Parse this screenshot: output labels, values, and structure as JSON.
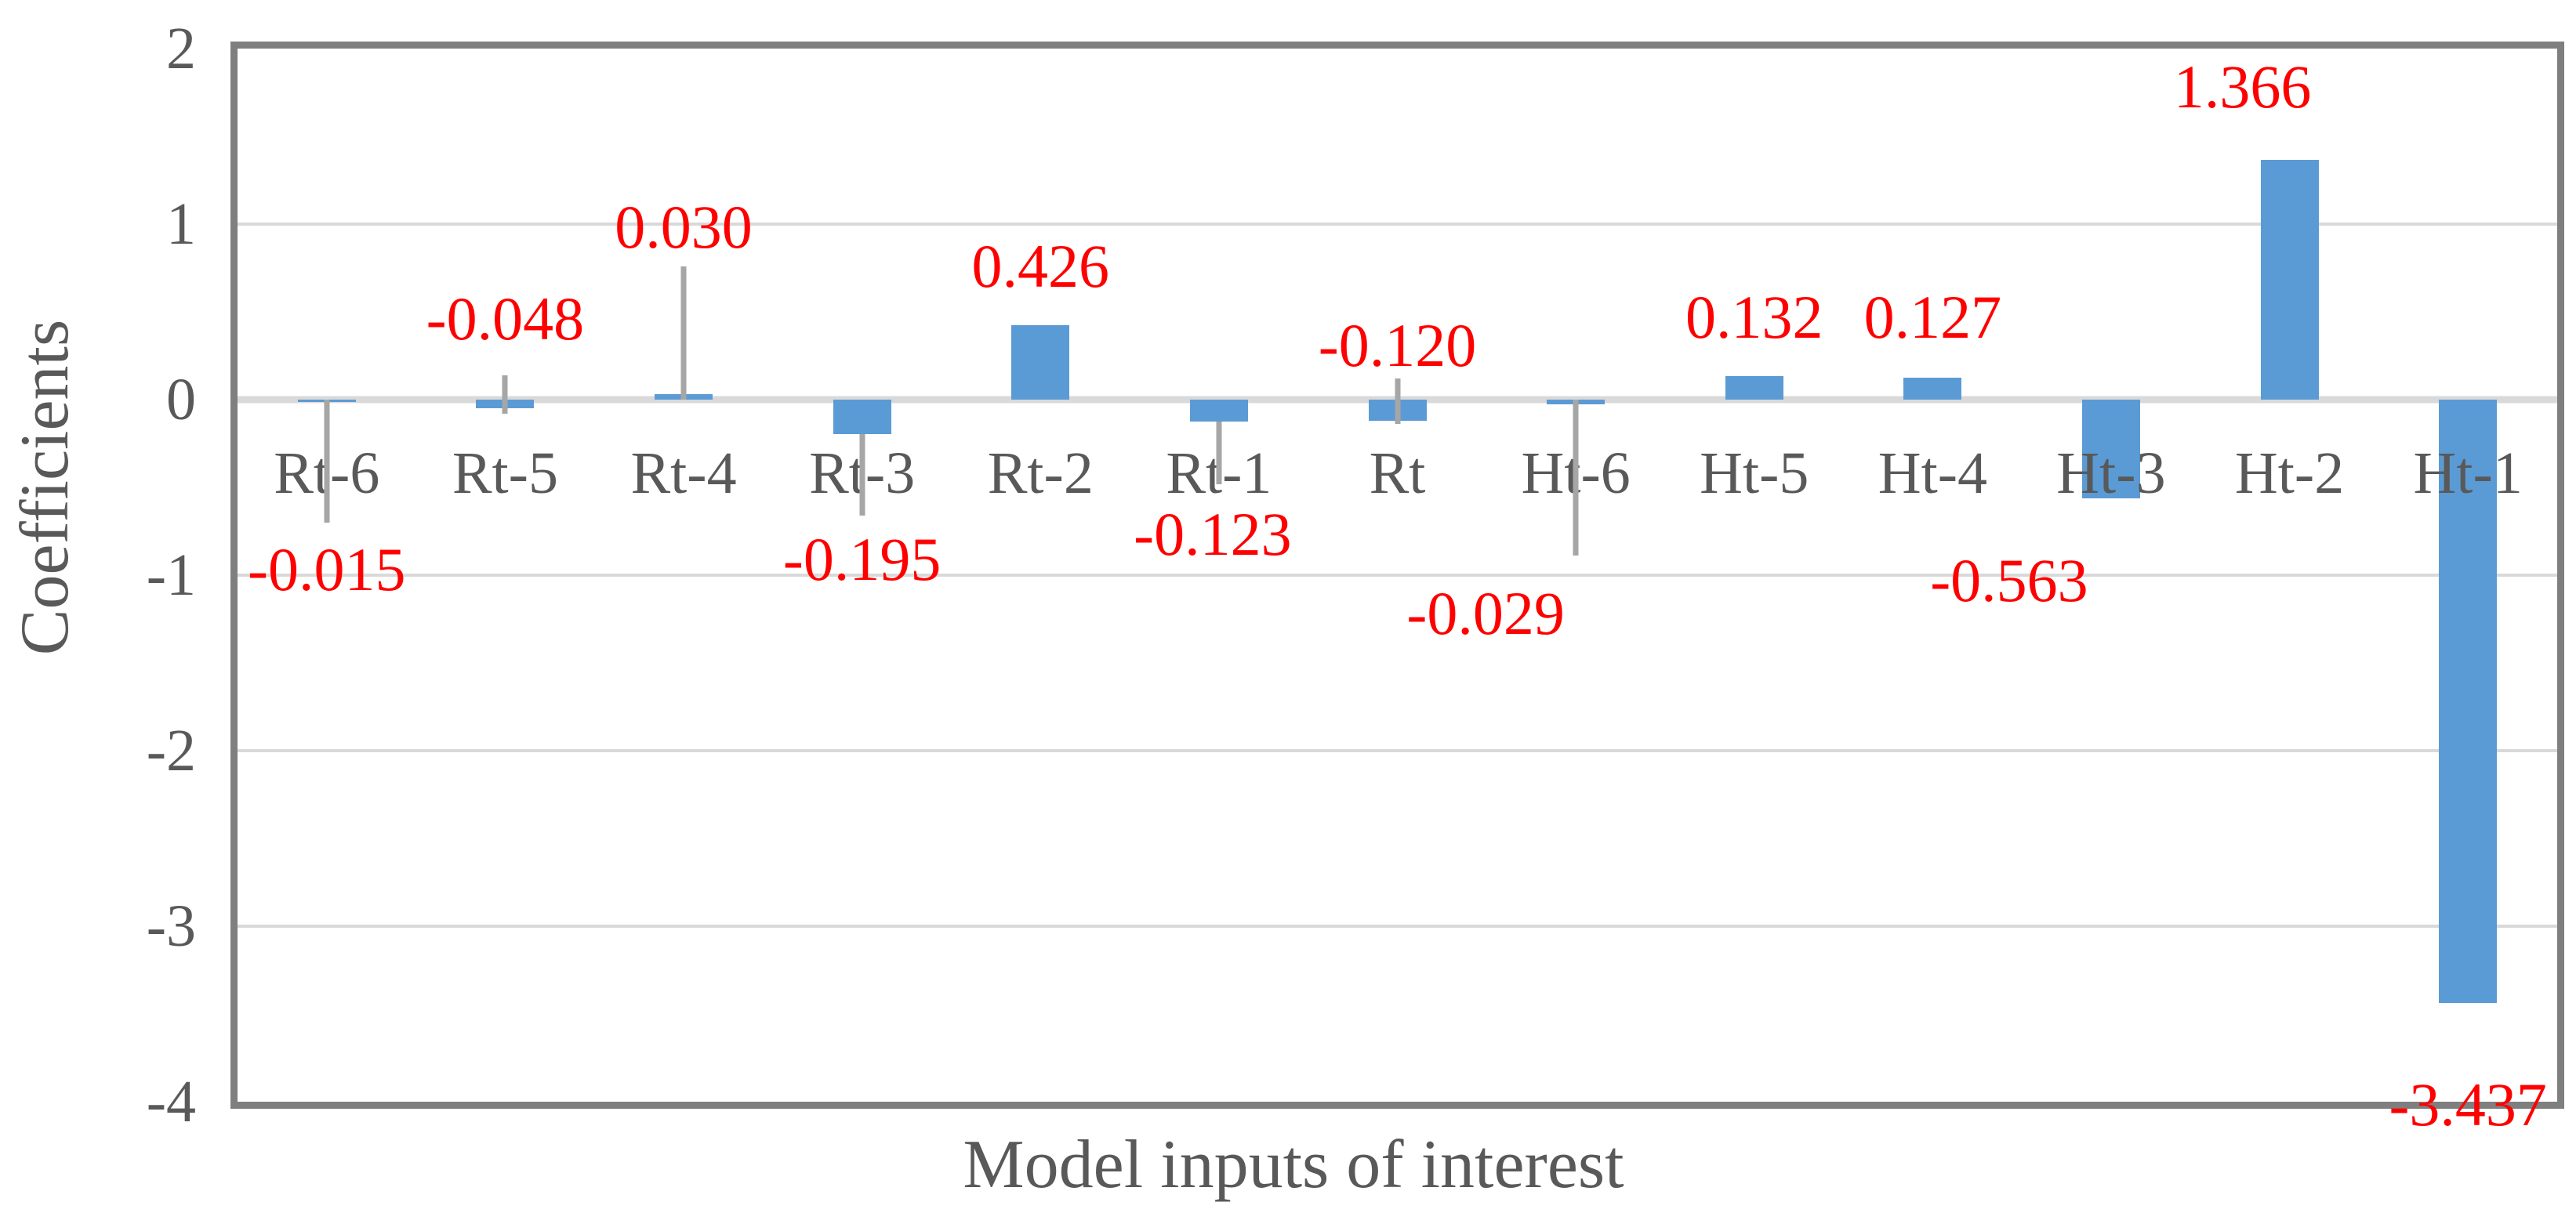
{
  "chart_data": {
    "type": "bar",
    "title": "",
    "xlabel": "Model inputs of interest",
    "ylabel": "Coefficients",
    "ylim": [
      -4,
      2
    ],
    "grid": true,
    "legend": false,
    "background": "#FFFFFF",
    "colors": {
      "bar": "#5B9BD5",
      "error_bar": "#A6A6A6",
      "gridline": "#D9D9D9",
      "plot_border": "#7F7F7F",
      "axis_text": "#595959",
      "data_label": "#FF0000"
    },
    "ytick_labels": [
      "2",
      "1",
      "0",
      "-1",
      "-2",
      "-3",
      "-4"
    ],
    "ytick_values": [
      2,
      1,
      0,
      -1,
      -2,
      -3,
      -4
    ],
    "categories": [
      "Rt-6",
      "Rt-5",
      "Rt-4",
      "Rt-3",
      "Rt-2",
      "Rt-1",
      "Rt",
      "Ht-6",
      "Ht-5",
      "Ht-4",
      "Ht-3",
      "Ht-2",
      "Ht-1"
    ],
    "values": [
      -0.015,
      -0.048,
      0.03,
      -0.195,
      0.426,
      -0.123,
      -0.12,
      -0.029,
      0.132,
      0.127,
      -0.563,
      1.366,
      -3.437
    ],
    "points": [
      {
        "category": "Rt-6",
        "value": -0.015,
        "label": "-0.015",
        "label_y": -0.97,
        "label_dx": 0,
        "err_top": 0.0,
        "err_bottom": -0.7
      },
      {
        "category": "Rt-5",
        "value": -0.048,
        "label": "-0.048",
        "label_y": 0.46,
        "label_dx": 0,
        "err_top": 0.14,
        "err_bottom": -0.08
      },
      {
        "category": "Rt-4",
        "value": 0.03,
        "label": "0.030",
        "label_y": 0.98,
        "label_dx": 0,
        "err_top": 0.76,
        "err_bottom": 0.0
      },
      {
        "category": "Rt-3",
        "value": -0.195,
        "label": "-0.195",
        "label_y": -0.91,
        "label_dx": 0,
        "err_top": -0.195,
        "err_bottom": -0.66
      },
      {
        "category": "Rt-2",
        "value": 0.426,
        "label": "0.426",
        "label_y": 0.76,
        "label_dx": 0,
        "err_top": null,
        "err_bottom": null
      },
      {
        "category": "Rt-1",
        "value": -0.123,
        "label": "-0.123",
        "label_y": -0.77,
        "label_dx": -8,
        "err_top": -0.123,
        "err_bottom": -0.48
      },
      {
        "category": "Rt",
        "value": -0.12,
        "label": "-0.120",
        "label_y": 0.31,
        "label_dx": 0,
        "err_top": 0.12,
        "err_bottom": -0.14
      },
      {
        "category": "Ht-6",
        "value": -0.029,
        "label": "-0.029",
        "label_y": -1.22,
        "label_dx": -115,
        "err_top": 0.0,
        "err_bottom": -0.89
      },
      {
        "category": "Ht-5",
        "value": 0.132,
        "label": "0.132",
        "label_y": 0.47,
        "label_dx": 0,
        "err_top": null,
        "err_bottom": null
      },
      {
        "category": "Ht-4",
        "value": 0.127,
        "label": "0.127",
        "label_y": 0.47,
        "label_dx": 0,
        "err_top": null,
        "err_bottom": null
      },
      {
        "category": "Ht-3",
        "value": -0.563,
        "label": "-0.563",
        "label_y": -1.03,
        "label_dx": -130,
        "err_top": null,
        "err_bottom": null
      },
      {
        "category": "Ht-2",
        "value": 1.366,
        "label": "1.366",
        "label_y": 1.78,
        "label_dx": -60,
        "err_top": null,
        "err_bottom": null
      },
      {
        "category": "Ht-1",
        "value": -3.437,
        "label": "-3.437",
        "label_y": -4.02,
        "label_dx": 0,
        "err_top": null,
        "err_bottom": null
      }
    ],
    "category_label_y": -0.42
  }
}
